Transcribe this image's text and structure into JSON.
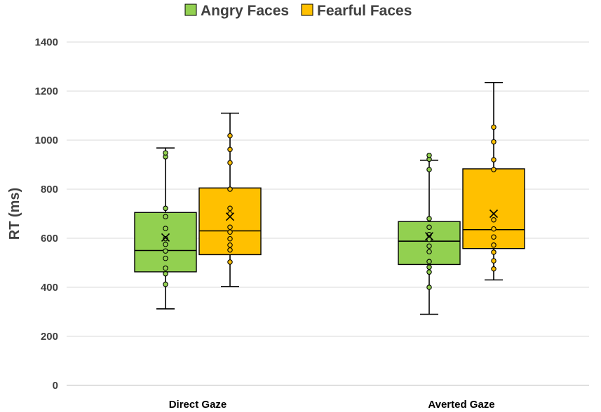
{
  "chart_data": {
    "type": "boxplot",
    "title": "",
    "xlabel": "",
    "ylabel": "RT (ms)",
    "ylim": [
      0,
      1400
    ],
    "yticks": [
      0,
      200,
      400,
      600,
      800,
      1000,
      1200,
      1400
    ],
    "grid": true,
    "legend_position": "top-center",
    "categories": [
      "Direct Gaze",
      "Averted Gaze"
    ],
    "series": [
      {
        "name": "Angry Faces",
        "color": "#92d050",
        "boxes": [
          {
            "category": "Direct Gaze",
            "whisker_low": 312,
            "q1": 463,
            "median": 550,
            "q3": 705,
            "whisker_high": 968,
            "mean": 603,
            "points": [
              412,
              455,
              478,
              518,
              548,
              575,
              598,
              640,
              688,
              722,
              932,
              948
            ]
          },
          {
            "category": "Averted Gaze",
            "whisker_low": 290,
            "q1": 493,
            "median": 588,
            "q3": 668,
            "whisker_high": 918,
            "mean": 608,
            "points": [
              400,
              462,
              482,
              505,
              545,
              568,
              595,
              615,
              645,
              680,
              880,
              922,
              938
            ]
          }
        ]
      },
      {
        "name": "Fearful Faces",
        "color": "#ffc000",
        "boxes": [
          {
            "category": "Direct Gaze",
            "whisker_low": 403,
            "q1": 533,
            "median": 630,
            "q3": 805,
            "whisker_high": 1110,
            "mean": 688,
            "points": [
              503,
              552,
              572,
              598,
              625,
              645,
              700,
              722,
              800,
              908,
              962,
              1018
            ]
          },
          {
            "category": "Averted Gaze",
            "whisker_low": 430,
            "q1": 558,
            "median": 635,
            "q3": 883,
            "whisker_high": 1235,
            "mean": 700,
            "points": [
              475,
              508,
              543,
              572,
              605,
              638,
              675,
              880,
              920,
              993,
              1053
            ]
          }
        ]
      }
    ]
  }
}
